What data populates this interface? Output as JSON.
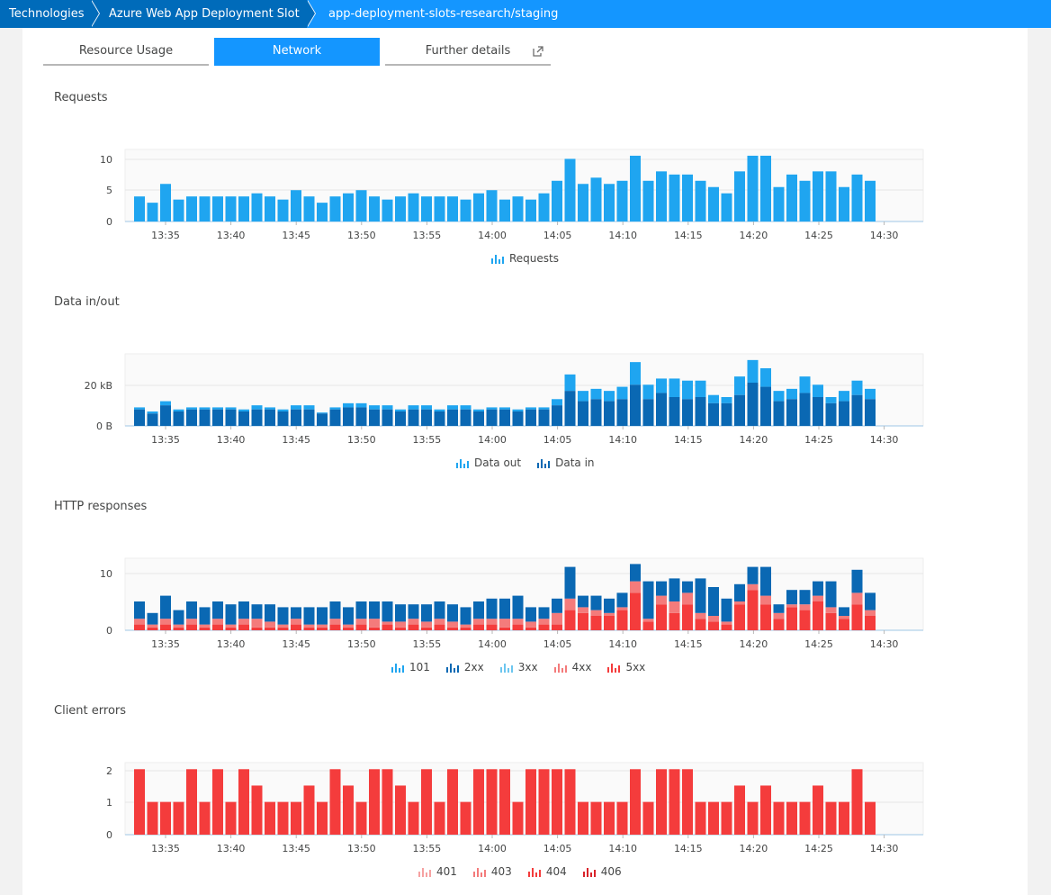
{
  "breadcrumb": [
    "Technologies",
    "Azure Web App Deployment Slot",
    "app-deployment-slots-research/staging"
  ],
  "tabs": [
    {
      "label": "Resource Usage",
      "active": false
    },
    {
      "label": "Network",
      "active": true
    },
    {
      "label": "Further details",
      "active": false
    }
  ],
  "colors": {
    "requests": "#1fa5f0",
    "data_out": "#1fa5f0",
    "data_in": "#0a68b3",
    "c101": "#1fa5f0",
    "c2xx": "#0a68b3",
    "c3xx": "#6cc6ef",
    "c4xx": "#f47b7b",
    "c5xx": "#f43c3c",
    "c401": "#f6a2a2",
    "c403": "#f47b7b",
    "c404": "#f43c3c",
    "c406": "#d9232a"
  },
  "x_ticks": [
    "13:35",
    "13:40",
    "13:45",
    "13:50",
    "13:55",
    "14:00",
    "14:05",
    "14:10",
    "14:15",
    "14:20",
    "14:25",
    "14:30"
  ],
  "charts": {
    "requests": {
      "title": "Requests",
      "yticks": [
        "10",
        "5",
        "0"
      ],
      "legend": [
        "Requests"
      ]
    },
    "data": {
      "title": "Data in/out",
      "yticks": [
        "20 kB",
        "0 B"
      ],
      "legend": [
        "Data out",
        "Data in"
      ]
    },
    "http": {
      "title": "HTTP responses",
      "yticks": [
        "10",
        "0"
      ],
      "legend": [
        "101",
        "2xx",
        "3xx",
        "4xx",
        "5xx"
      ]
    },
    "client": {
      "title": "Client errors",
      "yticks": [
        "2",
        "1",
        "0"
      ],
      "legend": [
        "401",
        "403",
        "404",
        "406"
      ]
    }
  },
  "chart_data": [
    {
      "type": "bar",
      "title": "Requests",
      "ylim": [
        0,
        11.5
      ],
      "series": [
        {
          "name": "Requests",
          "values": [
            4,
            3,
            6,
            3.5,
            4,
            4,
            4,
            4,
            4,
            4.5,
            4,
            3.5,
            5,
            4,
            3,
            4,
            4.5,
            5,
            4,
            3.5,
            4,
            4.5,
            4,
            4,
            4,
            3.5,
            4.5,
            5,
            3.5,
            4,
            3.5,
            4.5,
            6.5,
            10,
            6,
            7,
            6,
            6.5,
            10.5,
            6.5,
            8,
            7.5,
            7.5,
            6.5,
            5.5,
            4.5,
            8,
            10.5,
            10.5,
            5.5,
            7.5,
            6.5,
            8,
            8,
            5.5,
            7.5,
            6.5
          ]
        }
      ]
    },
    {
      "type": "bar",
      "title": "Data in/out",
      "ylim": [
        0,
        35
      ],
      "series": [
        {
          "name": "Data in",
          "values": [
            8,
            6,
            10,
            7,
            8,
            8,
            8,
            8,
            7,
            8,
            8,
            7,
            8,
            8,
            6,
            8,
            9,
            9,
            8,
            8,
            7,
            8,
            8,
            7,
            8,
            8,
            7,
            8,
            8,
            7,
            8,
            8,
            10,
            17,
            12,
            13,
            12,
            13,
            20,
            13,
            16,
            14,
            13,
            14,
            11,
            11,
            15,
            21,
            19,
            12,
            13,
            16,
            14,
            11,
            12,
            15,
            13
          ]
        },
        {
          "name": "Data out",
          "values": [
            1,
            1,
            2,
            1,
            1,
            1,
            1,
            1,
            1,
            2,
            1,
            1,
            2,
            2,
            0.5,
            1,
            2,
            2,
            2,
            2,
            1,
            2,
            2,
            1,
            2,
            2,
            1,
            1,
            1,
            1,
            1,
            1,
            3,
            8,
            5,
            5,
            5,
            6,
            11,
            7,
            7,
            9,
            9,
            8,
            4,
            3,
            9,
            11,
            9,
            5,
            5,
            8,
            6,
            3,
            5,
            7,
            5
          ]
        }
      ]
    },
    {
      "type": "bar",
      "title": "HTTP responses",
      "ylim": [
        0,
        12.5
      ],
      "series": [
        {
          "name": "5xx",
          "values": [
            1,
            0.5,
            1,
            0.5,
            1,
            0.5,
            1,
            0.5,
            1,
            0.5,
            0.5,
            0.5,
            1,
            0.5,
            0.5,
            1,
            0.5,
            1,
            0.5,
            1,
            0.5,
            1,
            0.5,
            1,
            0.5,
            0.5,
            1,
            1,
            0.5,
            1,
            0.5,
            1,
            1,
            3.5,
            3,
            2.5,
            2.5,
            3.5,
            6.5,
            1.5,
            4.5,
            3,
            4.5,
            2,
            1.5,
            1,
            4.5,
            7,
            4.5,
            2,
            4,
            3.5,
            5,
            3,
            2,
            4.5,
            2.5
          ]
        },
        {
          "name": "4xx",
          "values": [
            1,
            0.5,
            1,
            0.5,
            1,
            0.5,
            1,
            0.5,
            1,
            1.5,
            1,
            0.5,
            1,
            0.5,
            0.5,
            1,
            0.5,
            1,
            1.5,
            0.5,
            1,
            1,
            1,
            1,
            1,
            0.5,
            1,
            1,
            1.5,
            1,
            1,
            1,
            2,
            2,
            1,
            1,
            0.5,
            0.5,
            2,
            0.5,
            1.5,
            2,
            2,
            1,
            1,
            0.5,
            0.5,
            1,
            1.5,
            1,
            0.5,
            1,
            1,
            1,
            0.5,
            2,
            1
          ]
        },
        {
          "name": "3xx",
          "values": [
            0,
            0,
            0,
            0,
            0,
            0,
            0,
            0,
            0,
            0,
            0,
            0,
            0,
            0,
            0,
            0,
            0,
            0,
            0,
            0,
            0,
            0,
            0,
            0,
            0,
            0,
            0,
            0,
            0,
            0,
            0,
            0,
            0,
            0,
            0,
            0,
            0,
            0,
            0,
            0,
            0,
            0,
            0,
            0,
            0,
            0,
            0,
            0,
            0,
            0,
            0,
            0,
            0,
            0,
            0,
            0,
            0
          ]
        },
        {
          "name": "2xx",
          "values": [
            3,
            2,
            4,
            2.5,
            3,
            3,
            3,
            3.5,
            3,
            2.5,
            3,
            3,
            2,
            3,
            3,
            3,
            3,
            3,
            3,
            3.5,
            3,
            2.5,
            3,
            3,
            3,
            3,
            3,
            3.5,
            3.5,
            4,
            2.5,
            2,
            2.5,
            5.5,
            2,
            2.5,
            2.5,
            2.5,
            3,
            6.5,
            2.5,
            4,
            2,
            6,
            5,
            4,
            3,
            3,
            5,
            1.5,
            2.5,
            2.5,
            2.5,
            4.5,
            1.5,
            4,
            3
          ]
        },
        {
          "name": "101",
          "values": [
            0,
            0,
            0,
            0,
            0,
            0,
            0,
            0,
            0,
            0,
            0,
            0,
            0,
            0,
            0,
            0,
            0,
            0,
            0,
            0,
            0,
            0,
            0,
            0,
            0,
            0,
            0,
            0,
            0,
            0,
            0,
            0,
            0,
            0,
            0,
            0,
            0,
            0,
            0,
            0,
            0,
            0,
            0,
            0,
            0,
            0,
            0,
            0,
            0,
            0,
            0,
            0,
            0,
            0,
            0,
            0,
            0
          ]
        }
      ]
    },
    {
      "type": "bar",
      "title": "Client errors",
      "ylim": [
        0,
        2.2
      ],
      "series": [
        {
          "name": "404",
          "values": [
            2,
            1,
            1,
            1,
            2,
            1,
            2,
            1,
            2,
            1.5,
            1,
            1,
            1,
            1.5,
            1,
            2,
            1.5,
            1,
            2,
            2,
            1.5,
            1,
            2,
            1,
            2,
            1,
            2,
            2,
            2,
            1,
            2,
            2,
            2,
            2,
            1,
            1,
            1,
            1,
            2,
            1,
            2,
            2,
            2,
            1,
            1,
            1,
            1.5,
            1,
            1.5,
            1,
            1,
            1,
            1.5,
            1,
            1,
            2,
            1
          ]
        }
      ]
    }
  ]
}
